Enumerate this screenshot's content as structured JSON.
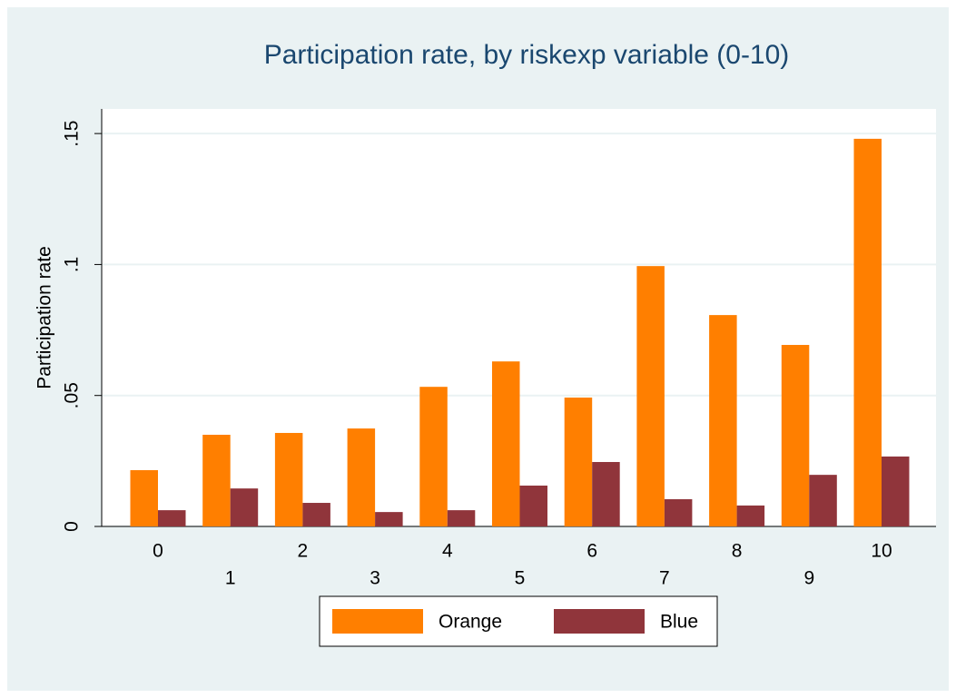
{
  "chart_data": {
    "type": "bar",
    "title": "Participation rate, by riskexp variable (0-10)",
    "y_label": "Participation rate",
    "categories": [
      "0",
      "1",
      "2",
      "3",
      "4",
      "5",
      "6",
      "7",
      "8",
      "9",
      "10"
    ],
    "series": [
      {
        "name": "Orange",
        "color": "#ff7f00",
        "values": [
          0.0215,
          0.035,
          0.0357,
          0.0374,
          0.0533,
          0.063,
          0.0492,
          0.0994,
          0.0807,
          0.0693,
          0.148
        ]
      },
      {
        "name": "Blue",
        "color": "#90353b",
        "values": [
          0.0062,
          0.0145,
          0.009,
          0.0055,
          0.0062,
          0.0156,
          0.0246,
          0.0104,
          0.008,
          0.0197,
          0.0267
        ]
      }
    ],
    "ylim": [
      0,
      0.1594
    ],
    "yticks": [
      0,
      {
        "value": 0.05,
        "label": ".05"
      },
      {
        "value": 0.1,
        "label": ".1"
      },
      {
        "value": 0.15,
        "label": ".15"
      }
    ],
    "grid": true
  }
}
